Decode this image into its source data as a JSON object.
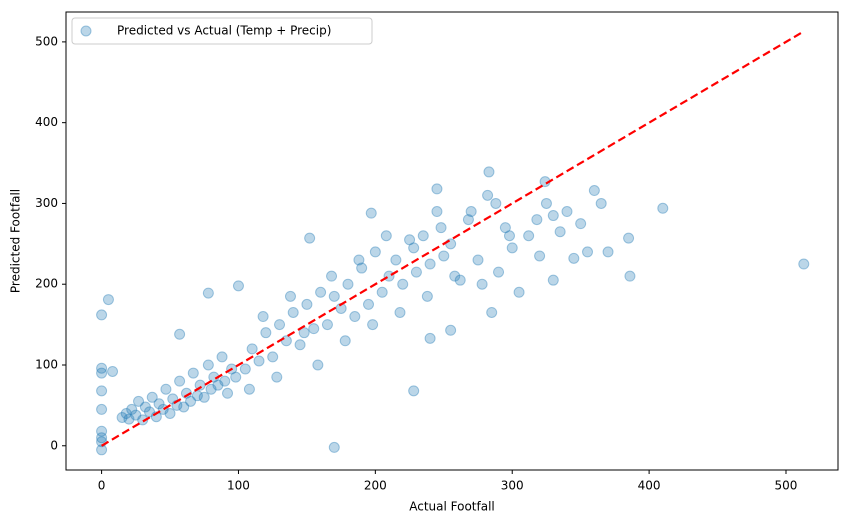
{
  "chart_data": {
    "type": "scatter",
    "xlabel": "Actual Footfall",
    "ylabel": "Predicted Footfall",
    "xlim": [
      -26,
      538
    ],
    "ylim": [
      -30,
      537
    ],
    "xticks": [
      0,
      100,
      200,
      300,
      400,
      500
    ],
    "yticks": [
      0,
      100,
      200,
      300,
      400,
      500
    ],
    "legend": "upper left",
    "series": [
      {
        "name": "Predicted vs Actual (Temp + Precip)",
        "color": "#1f77b4",
        "x": [
          15,
          18,
          20,
          22,
          25,
          27,
          30,
          32,
          35,
          37,
          40,
          42,
          45,
          47,
          50,
          52,
          55,
          57,
          60,
          62,
          65,
          67,
          70,
          72,
          75,
          78,
          80,
          82,
          85,
          88,
          90,
          92,
          95,
          98,
          105,
          110,
          115,
          120,
          125,
          130,
          135,
          140,
          145,
          150,
          155,
          160,
          165,
          170,
          175,
          180,
          185,
          190,
          195,
          200,
          205,
          210,
          215,
          220,
          225,
          230,
          235,
          240,
          245,
          250,
          108,
          118,
          128,
          138,
          148,
          158,
          168,
          178,
          188,
          198,
          208,
          218,
          228,
          238,
          248,
          258,
          268,
          278,
          288,
          298,
          255,
          262,
          270,
          275,
          282,
          290,
          295,
          300,
          305,
          312,
          318,
          320,
          325,
          330,
          335,
          340,
          350,
          355,
          0,
          5,
          0,
          0,
          0,
          0,
          0,
          0,
          0,
          0,
          8,
          170,
          228,
          513,
          410,
          385,
          386,
          324,
          283,
          245,
          197,
          152,
          57,
          78,
          100,
          360,
          365,
          370,
          345,
          330,
          285,
          255,
          240
        ],
        "y": [
          35,
          40,
          33,
          45,
          38,
          55,
          32,
          48,
          42,
          60,
          36,
          52,
          45,
          70,
          40,
          58,
          50,
          80,
          48,
          65,
          55,
          90,
          62,
          75,
          60,
          100,
          70,
          85,
          75,
          110,
          80,
          65,
          95,
          85,
          95,
          120,
          105,
          140,
          110,
          150,
          130,
          165,
          125,
          175,
          145,
          190,
          150,
          185,
          170,
          200,
          160,
          220,
          175,
          240,
          190,
          210,
          230,
          200,
          255,
          215,
          260,
          225,
          290,
          235,
          70,
          160,
          85,
          185,
          140,
          100,
          210,
          130,
          230,
          150,
          260,
          165,
          245,
          185,
          270,
          210,
          280,
          200,
          300,
          260,
          250,
          205,
          290,
          230,
          310,
          215,
          270,
          245,
          190,
          260,
          280,
          235,
          300,
          285,
          265,
          290,
          275,
          240,
          162,
          181,
          96,
          90,
          68,
          45,
          18,
          10,
          -5,
          5,
          92,
          -2,
          68,
          225,
          294,
          257,
          210,
          327,
          339,
          318,
          288,
          257,
          138,
          189,
          198,
          316,
          300,
          240,
          232,
          205,
          165,
          143,
          133
        ]
      }
    ],
    "reference_line": {
      "x": [
        0,
        513
      ],
      "y": [
        0,
        513
      ],
      "color": "#ff0000",
      "style": "dashed"
    }
  }
}
